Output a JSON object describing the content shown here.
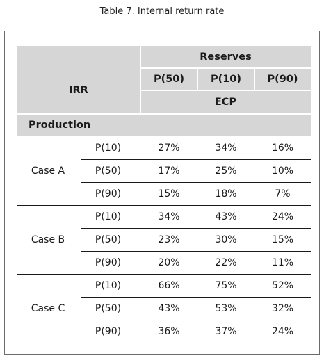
{
  "caption": "Table 7. Internal return rate",
  "header": {
    "irr": "IRR",
    "reserves": "Reserves",
    "reserve_cols": [
      "P(50)",
      "P(10)",
      "P(90)"
    ],
    "ecp": "ECP"
  },
  "section": "Production",
  "cases": [
    {
      "label": "Case A",
      "rows": [
        {
          "prod": "P(10)",
          "values": [
            "27%",
            "34%",
            "16%"
          ]
        },
        {
          "prod": "P(50)",
          "values": [
            "17%",
            "25%",
            "10%"
          ]
        },
        {
          "prod": "P(90)",
          "values": [
            "15%",
            "18%",
            "7%"
          ]
        }
      ]
    },
    {
      "label": "Case B",
      "rows": [
        {
          "prod": "P(10)",
          "values": [
            "34%",
            "43%",
            "24%"
          ]
        },
        {
          "prod": "P(50)",
          "values": [
            "23%",
            "30%",
            "15%"
          ]
        },
        {
          "prod": "P(90)",
          "values": [
            "20%",
            "22%",
            "11%"
          ]
        }
      ]
    },
    {
      "label": "Case C",
      "rows": [
        {
          "prod": "P(10)",
          "values": [
            "66%",
            "75%",
            "52%"
          ]
        },
        {
          "prod": "P(50)",
          "values": [
            "43%",
            "53%",
            "32%"
          ]
        },
        {
          "prod": "P(90)",
          "values": [
            "36%",
            "37%",
            "24%"
          ]
        }
      ]
    }
  ]
}
